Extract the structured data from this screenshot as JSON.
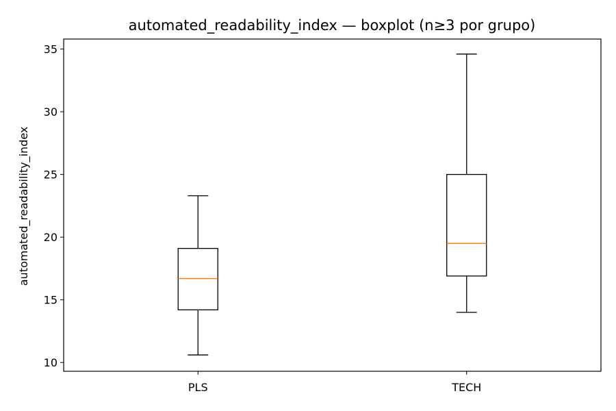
{
  "chart_data": {
    "type": "boxplot",
    "title": "automated_readability_index — boxplot (n≥3 por grupo)",
    "xlabel": "",
    "ylabel": "automated_readability_index",
    "ylim": [
      9.3,
      35.8
    ],
    "yticks": [
      10,
      15,
      20,
      25,
      30,
      35
    ],
    "grid": false,
    "categories": [
      "PLS",
      "TECH"
    ],
    "boxes": [
      {
        "category": "PLS",
        "whisker_low": 10.6,
        "q1": 14.2,
        "median": 16.7,
        "q3": 19.1,
        "whisker_high": 23.3
      },
      {
        "category": "TECH",
        "whisker_low": 14.0,
        "q1": 16.9,
        "median": 19.5,
        "q3": 25.0,
        "whisker_high": 34.6
      }
    ],
    "colors": {
      "box": "#000000",
      "median": "#ff7f0e",
      "whisker": "#000000"
    }
  }
}
